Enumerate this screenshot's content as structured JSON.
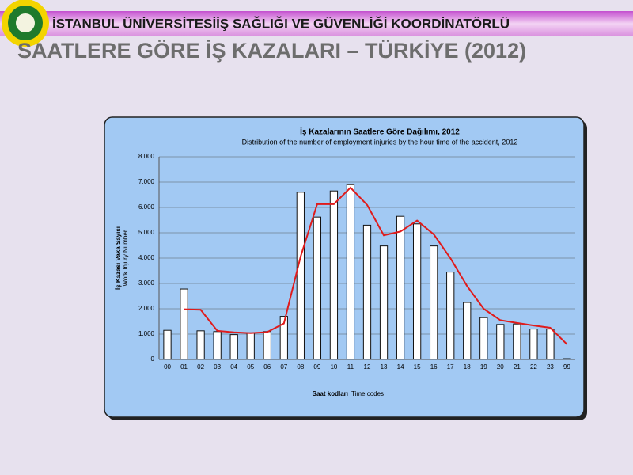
{
  "header": {
    "text": "İSTANBUL ÜNİVERSİTESİİŞ SAĞLIĞI VE GÜVENLİĞİ KOORDİNATÖRLÜ"
  },
  "slide_title": "SAATLERE GÖRE İŞ KAZALARI – TÜRKİYE  (2012)",
  "chart_data": {
    "type": "bar",
    "title": "İş Kazalarının Saatlere Göre Dağılımı, 2012",
    "subtitle": "Distribution of the number of employment injuries by the hour time of the accident, 2012",
    "y_label": "İş Kazası Vaka Sayısı",
    "y_label_en": "Work Injury Number",
    "x_label": "Saat kodları",
    "x_label_en": "Time codes",
    "categories": [
      "00",
      "01",
      "02",
      "03",
      "04",
      "05",
      "06",
      "07",
      "08",
      "09",
      "10",
      "11",
      "12",
      "13",
      "14",
      "15",
      "16",
      "17",
      "18",
      "19",
      "20",
      "21",
      "22",
      "23",
      "99"
    ],
    "series": [
      {
        "type": "bar",
        "color": "#ffffff",
        "values": [
          1150,
          2780,
          1130,
          1100,
          980,
          1050,
          1100,
          1700,
          6600,
          5620,
          6650,
          6900,
          5300,
          4480,
          5650,
          5350,
          4480,
          3450,
          2250,
          1650,
          1380,
          1400,
          1200,
          1200,
          30
        ]
      },
      {
        "type": "line",
        "color": "#e01b1b",
        "values": [
          null,
          1980,
          1960,
          1130,
          1070,
          1040,
          1080,
          1420,
          4050,
          6130,
          6130,
          6780,
          6100,
          4900,
          5050,
          5480,
          4940,
          4000,
          2900,
          2000,
          1550,
          1440,
          1340,
          1250,
          600
        ]
      }
    ],
    "ylim": [
      0,
      8000
    ],
    "yticks": [
      0,
      {
        "value": 1000,
        "label": "1.000"
      },
      {
        "value": 2000,
        "label": "2.000"
      },
      {
        "value": 3000,
        "label": "3.000"
      },
      {
        "value": 4000,
        "label": "4.000"
      },
      {
        "value": 5000,
        "label": "5.000"
      },
      {
        "value": 6000,
        "label": "6.000"
      },
      {
        "value": 7000,
        "label": "7.000"
      },
      {
        "value": 8000,
        "label": "8.000"
      }
    ],
    "grid": true
  }
}
